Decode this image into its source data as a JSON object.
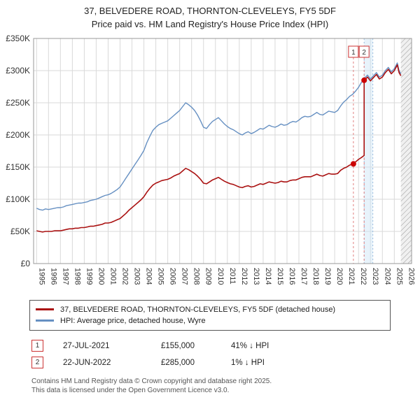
{
  "header": {
    "line1": "37, BELVEDERE ROAD, THORNTON-CLEVELEYS, FY5 5DF",
    "line2": "Price paid vs. HM Land Registry's House Price Index (HPI)"
  },
  "chart_data": {
    "type": "line",
    "x_range": [
      1994.75,
      2026.45
    ],
    "y_range": [
      0,
      350
    ],
    "y_unit": "GBP thousands",
    "x_ticks": [
      1995,
      1996,
      1997,
      1998,
      1999,
      2000,
      2001,
      2002,
      2003,
      2004,
      2005,
      2006,
      2007,
      2008,
      2009,
      2010,
      2011,
      2012,
      2013,
      2014,
      2015,
      2016,
      2017,
      2018,
      2019,
      2020,
      2021,
      2022,
      2023,
      2024,
      2025,
      2026
    ],
    "y_ticks": [
      {
        "v": 0,
        "label": "£0"
      },
      {
        "v": 50,
        "label": "£50K"
      },
      {
        "v": 100,
        "label": "£100K"
      },
      {
        "v": 150,
        "label": "£150K"
      },
      {
        "v": 200,
        "label": "£200K"
      },
      {
        "v": 250,
        "label": "£250K"
      },
      {
        "v": 300,
        "label": "£300K"
      },
      {
        "v": 350,
        "label": "£350K"
      }
    ],
    "grid": true,
    "hatch_from": 2025.55,
    "band": {
      "x1": 2022.47,
      "x2": 2023.2,
      "color": "#cce4f7"
    },
    "marker_color": "#cc0000",
    "events": [
      {
        "n": "1",
        "x": 2021.57
      },
      {
        "n": "2",
        "x": 2022.47
      }
    ],
    "markers": [
      {
        "x": 2021.57,
        "y": 155
      },
      {
        "x": 2022.47,
        "y": 285
      }
    ],
    "series": [
      {
        "name": "hpi",
        "label": "HPI: Average price, detached house, Wyre",
        "color": "#6690c2",
        "width": 1.4,
        "points": [
          [
            1995.0,
            86
          ],
          [
            1995.25,
            84
          ],
          [
            1995.5,
            83
          ],
          [
            1995.75,
            85
          ],
          [
            1996.0,
            84
          ],
          [
            1996.25,
            85
          ],
          [
            1996.5,
            86
          ],
          [
            1996.75,
            87
          ],
          [
            1997.0,
            87
          ],
          [
            1997.25,
            88
          ],
          [
            1997.5,
            90
          ],
          [
            1997.75,
            91
          ],
          [
            1998.0,
            92
          ],
          [
            1998.25,
            93
          ],
          [
            1998.5,
            94
          ],
          [
            1998.75,
            94
          ],
          [
            1999.0,
            95
          ],
          [
            1999.25,
            96
          ],
          [
            1999.5,
            98
          ],
          [
            1999.75,
            99
          ],
          [
            2000.0,
            100
          ],
          [
            2000.25,
            102
          ],
          [
            2000.5,
            104
          ],
          [
            2000.75,
            106
          ],
          [
            2001.0,
            107
          ],
          [
            2001.25,
            109
          ],
          [
            2001.5,
            112
          ],
          [
            2001.75,
            115
          ],
          [
            2002.0,
            119
          ],
          [
            2002.25,
            126
          ],
          [
            2002.5,
            133
          ],
          [
            2002.75,
            140
          ],
          [
            2003.0,
            147
          ],
          [
            2003.25,
            154
          ],
          [
            2003.5,
            161
          ],
          [
            2003.75,
            168
          ],
          [
            2004.0,
            176
          ],
          [
            2004.25,
            188
          ],
          [
            2004.5,
            198
          ],
          [
            2004.75,
            207
          ],
          [
            2005.0,
            212
          ],
          [
            2005.25,
            216
          ],
          [
            2005.5,
            218
          ],
          [
            2005.75,
            220
          ],
          [
            2006.0,
            222
          ],
          [
            2006.25,
            226
          ],
          [
            2006.5,
            230
          ],
          [
            2006.75,
            234
          ],
          [
            2007.0,
            238
          ],
          [
            2007.25,
            244
          ],
          [
            2007.5,
            250
          ],
          [
            2007.75,
            247
          ],
          [
            2008.0,
            243
          ],
          [
            2008.25,
            238
          ],
          [
            2008.5,
            231
          ],
          [
            2008.75,
            222
          ],
          [
            2009.0,
            212
          ],
          [
            2009.25,
            210
          ],
          [
            2009.5,
            216
          ],
          [
            2009.75,
            221
          ],
          [
            2010.0,
            224
          ],
          [
            2010.25,
            227
          ],
          [
            2010.5,
            222
          ],
          [
            2010.75,
            217
          ],
          [
            2011.0,
            213
          ],
          [
            2011.25,
            210
          ],
          [
            2011.5,
            208
          ],
          [
            2011.75,
            205
          ],
          [
            2012.0,
            202
          ],
          [
            2012.25,
            200
          ],
          [
            2012.5,
            203
          ],
          [
            2012.75,
            205
          ],
          [
            2013.0,
            202
          ],
          [
            2013.25,
            204
          ],
          [
            2013.5,
            207
          ],
          [
            2013.75,
            210
          ],
          [
            2014.0,
            209
          ],
          [
            2014.25,
            212
          ],
          [
            2014.5,
            215
          ],
          [
            2014.75,
            213
          ],
          [
            2015.0,
            212
          ],
          [
            2015.25,
            214
          ],
          [
            2015.5,
            217
          ],
          [
            2015.75,
            215
          ],
          [
            2016.0,
            216
          ],
          [
            2016.25,
            219
          ],
          [
            2016.5,
            221
          ],
          [
            2016.75,
            220
          ],
          [
            2017.0,
            223
          ],
          [
            2017.25,
            227
          ],
          [
            2017.5,
            229
          ],
          [
            2017.75,
            228
          ],
          [
            2018.0,
            229
          ],
          [
            2018.25,
            232
          ],
          [
            2018.5,
            235
          ],
          [
            2018.75,
            232
          ],
          [
            2019.0,
            231
          ],
          [
            2019.25,
            234
          ],
          [
            2019.5,
            237
          ],
          [
            2019.75,
            236
          ],
          [
            2020.0,
            235
          ],
          [
            2020.25,
            238
          ],
          [
            2020.5,
            245
          ],
          [
            2020.75,
            251
          ],
          [
            2021.0,
            255
          ],
          [
            2021.25,
            260
          ],
          [
            2021.5,
            263
          ],
          [
            2021.75,
            268
          ],
          [
            2022.0,
            274
          ],
          [
            2022.25,
            282
          ],
          [
            2022.5,
            288
          ],
          [
            2022.75,
            293
          ],
          [
            2023.0,
            287
          ],
          [
            2023.25,
            292
          ],
          [
            2023.5,
            297
          ],
          [
            2023.75,
            290
          ],
          [
            2024.0,
            293
          ],
          [
            2024.25,
            300
          ],
          [
            2024.5,
            305
          ],
          [
            2024.75,
            298
          ],
          [
            2025.0,
            303
          ],
          [
            2025.25,
            312
          ],
          [
            2025.4,
            300
          ],
          [
            2025.55,
            295
          ]
        ]
      },
      {
        "name": "price-paid",
        "label": "37, BELVEDERE ROAD, THORNTON-CLEVELEYS, FY5 5DF (detached house)",
        "color": "#aa1111",
        "width": 1.6,
        "points": [
          [
            1995.0,
            51
          ],
          [
            1995.25,
            50
          ],
          [
            1995.5,
            49
          ],
          [
            1995.75,
            50
          ],
          [
            1996.0,
            50
          ],
          [
            1996.25,
            50
          ],
          [
            1996.5,
            51
          ],
          [
            1996.75,
            51
          ],
          [
            1997.0,
            51
          ],
          [
            1997.25,
            52
          ],
          [
            1997.5,
            53
          ],
          [
            1997.75,
            54
          ],
          [
            1998.0,
            54
          ],
          [
            1998.25,
            55
          ],
          [
            1998.5,
            55
          ],
          [
            1998.75,
            56
          ],
          [
            1999.0,
            56
          ],
          [
            1999.25,
            57
          ],
          [
            1999.5,
            58
          ],
          [
            1999.75,
            58
          ],
          [
            2000.0,
            59
          ],
          [
            2000.25,
            60
          ],
          [
            2000.5,
            61
          ],
          [
            2000.75,
            63
          ],
          [
            2001.0,
            63
          ],
          [
            2001.25,
            64
          ],
          [
            2001.5,
            66
          ],
          [
            2001.75,
            68
          ],
          [
            2002.0,
            70
          ],
          [
            2002.25,
            74
          ],
          [
            2002.5,
            78
          ],
          [
            2002.75,
            83
          ],
          [
            2003.0,
            87
          ],
          [
            2003.25,
            91
          ],
          [
            2003.5,
            95
          ],
          [
            2003.75,
            99
          ],
          [
            2004.0,
            104
          ],
          [
            2004.25,
            111
          ],
          [
            2004.5,
            117
          ],
          [
            2004.75,
            122
          ],
          [
            2005.0,
            125
          ],
          [
            2005.25,
            127
          ],
          [
            2005.5,
            129
          ],
          [
            2005.75,
            130
          ],
          [
            2006.0,
            131
          ],
          [
            2006.25,
            133
          ],
          [
            2006.5,
            136
          ],
          [
            2006.75,
            138
          ],
          [
            2007.0,
            140
          ],
          [
            2007.25,
            144
          ],
          [
            2007.5,
            148
          ],
          [
            2007.75,
            146
          ],
          [
            2008.0,
            143
          ],
          [
            2008.25,
            140
          ],
          [
            2008.5,
            136
          ],
          [
            2008.75,
            131
          ],
          [
            2009.0,
            125
          ],
          [
            2009.25,
            124
          ],
          [
            2009.5,
            127
          ],
          [
            2009.75,
            130
          ],
          [
            2010.0,
            132
          ],
          [
            2010.25,
            134
          ],
          [
            2010.5,
            131
          ],
          [
            2010.75,
            128
          ],
          [
            2011.0,
            126
          ],
          [
            2011.25,
            124
          ],
          [
            2011.5,
            123
          ],
          [
            2011.75,
            121
          ],
          [
            2012.0,
            119
          ],
          [
            2012.25,
            118
          ],
          [
            2012.5,
            120
          ],
          [
            2012.75,
            121
          ],
          [
            2013.0,
            119
          ],
          [
            2013.25,
            120
          ],
          [
            2013.5,
            122
          ],
          [
            2013.75,
            124
          ],
          [
            2014.0,
            123
          ],
          [
            2014.25,
            125
          ],
          [
            2014.5,
            127
          ],
          [
            2014.75,
            126
          ],
          [
            2015.0,
            125
          ],
          [
            2015.25,
            126
          ],
          [
            2015.5,
            128
          ],
          [
            2015.75,
            127
          ],
          [
            2016.0,
            127
          ],
          [
            2016.25,
            129
          ],
          [
            2016.5,
            130
          ],
          [
            2016.75,
            130
          ],
          [
            2017.0,
            132
          ],
          [
            2017.25,
            134
          ],
          [
            2017.5,
            135
          ],
          [
            2017.75,
            135
          ],
          [
            2018.0,
            135
          ],
          [
            2018.25,
            137
          ],
          [
            2018.5,
            139
          ],
          [
            2018.75,
            137
          ],
          [
            2019.0,
            136
          ],
          [
            2019.25,
            138
          ],
          [
            2019.5,
            140
          ],
          [
            2019.75,
            139
          ],
          [
            2020.0,
            139
          ],
          [
            2020.25,
            140
          ],
          [
            2020.5,
            145
          ],
          [
            2020.75,
            148
          ],
          [
            2021.0,
            150
          ],
          [
            2021.25,
            153
          ],
          [
            2021.57,
            155
          ],
          [
            2021.75,
            158
          ],
          [
            2022.0,
            162
          ],
          [
            2022.25,
            165
          ],
          [
            2022.47,
            168
          ],
          [
            2022.47,
            285
          ],
          [
            2022.5,
            285
          ],
          [
            2022.75,
            290
          ],
          [
            2023.0,
            284
          ],
          [
            2023.25,
            289
          ],
          [
            2023.5,
            294
          ],
          [
            2023.75,
            287
          ],
          [
            2024.0,
            290
          ],
          [
            2024.25,
            297
          ],
          [
            2024.5,
            302
          ],
          [
            2024.75,
            295
          ],
          [
            2025.0,
            300
          ],
          [
            2025.25,
            309
          ],
          [
            2025.4,
            297
          ],
          [
            2025.55,
            292
          ]
        ]
      }
    ]
  },
  "legend": {
    "items": [
      {
        "label": "37, BELVEDERE ROAD, THORNTON-CLEVELEYS, FY5 5DF (detached house)",
        "color": "#aa1111"
      },
      {
        "label": "HPI: Average price, detached house, Wyre",
        "color": "#6690c2"
      }
    ]
  },
  "transactions": [
    {
      "num": "1",
      "date": "27-JUL-2021",
      "price": "£155,000",
      "hpi": "41% ↓ HPI"
    },
    {
      "num": "2",
      "date": "22-JUN-2022",
      "price": "£285,000",
      "hpi": "1% ↓ HPI"
    }
  ],
  "footer": {
    "line1": "Contains HM Land Registry data © Crown copyright and database right 2025.",
    "line2": "This data is licensed under the Open Government Licence v3.0."
  }
}
